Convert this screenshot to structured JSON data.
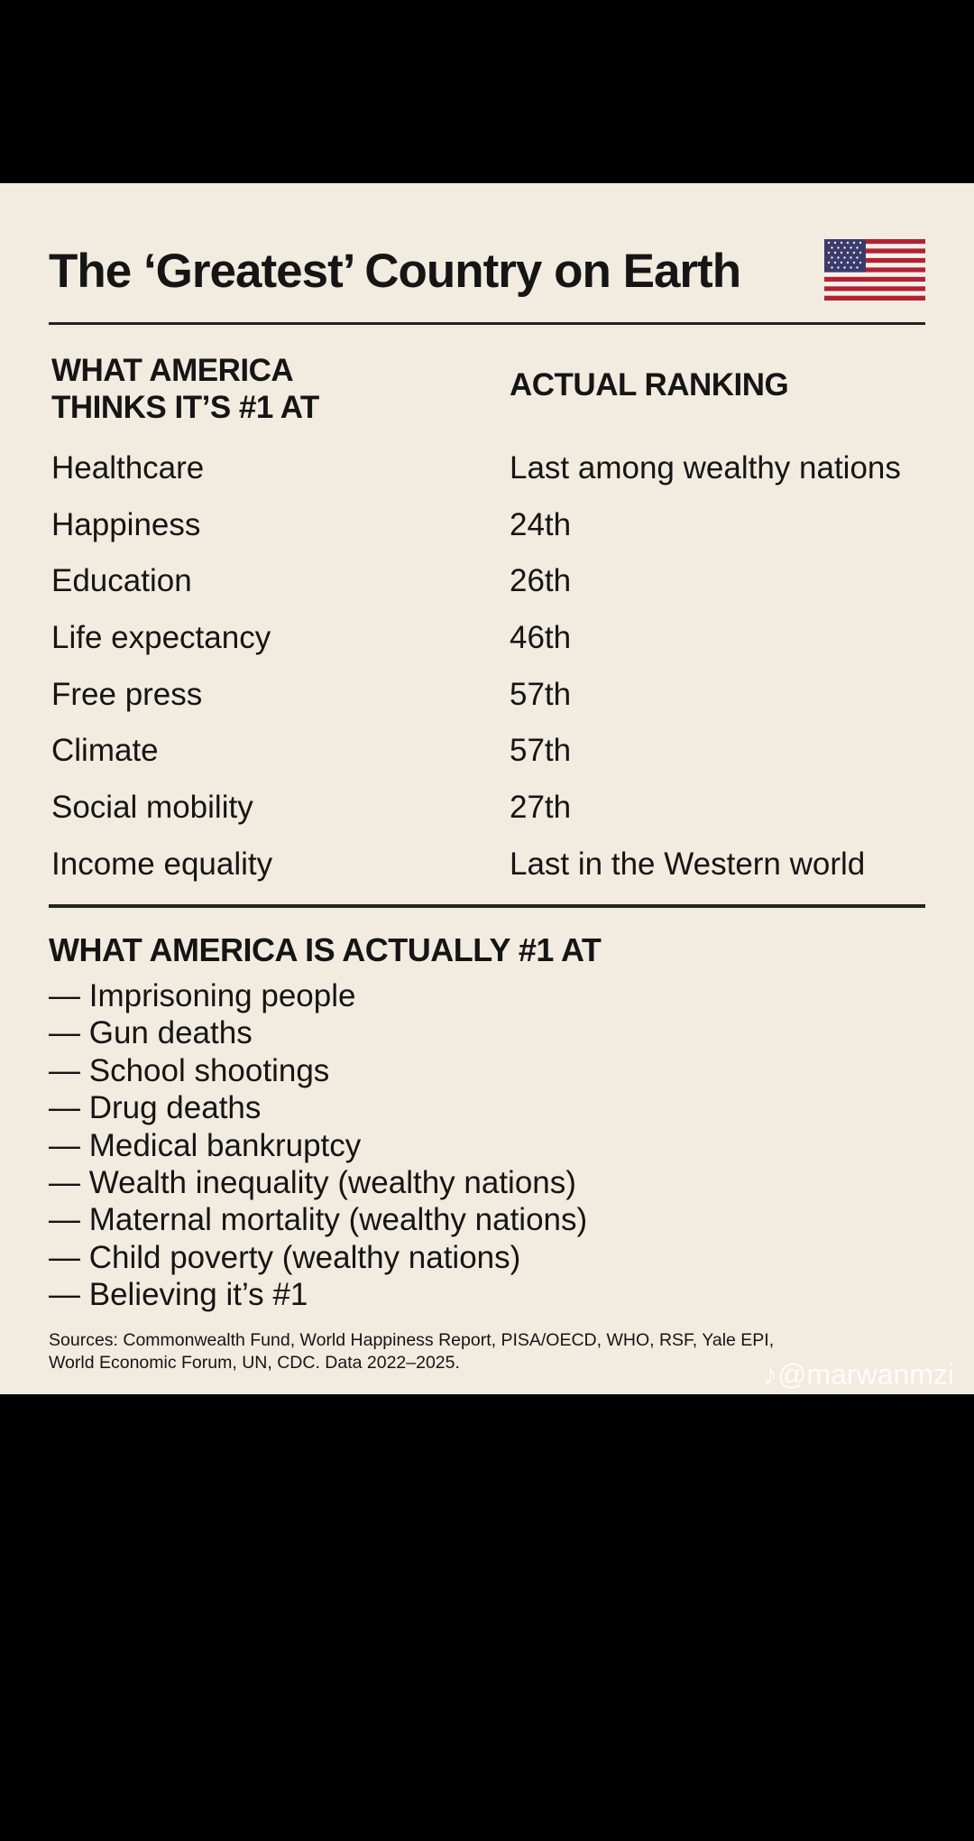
{
  "title": "The ‘Greatest’ Country on Earth",
  "flag_icon": "us-flag-icon",
  "colors": {
    "background": "#f1ebe0",
    "text": "#151515",
    "flag_red": "#b22234",
    "flag_blue": "#3c3b6e"
  },
  "table": {
    "header_left_line1": "WHAT AMERICA",
    "header_left_line2": "THINKS IT’S #1 AT",
    "header_right": "ACTUAL RANKING",
    "rows": [
      {
        "category": "Healthcare",
        "ranking": "Last among wealthy nations"
      },
      {
        "category": "Happiness",
        "ranking": "24th"
      },
      {
        "category": "Education",
        "ranking": "26th"
      },
      {
        "category": "Life expectancy",
        "ranking": "46th"
      },
      {
        "category": "Free press",
        "ranking": "57th"
      },
      {
        "category": "Climate",
        "ranking": "57th"
      },
      {
        "category": "Social mobility",
        "ranking": "27th"
      },
      {
        "category": "Income equality",
        "ranking": "Last in the Western world"
      }
    ]
  },
  "actual_section": {
    "heading": "WHAT AMERICA IS ACTUALLY #1 AT",
    "items": [
      "— Imprisoning people",
      "— Gun deaths",
      "— School shootings",
      "— Drug deaths",
      "— Medical bankruptcy",
      "— Wealth inequality (wealthy nations)",
      "— Maternal mortality (wealthy nations)",
      "— Child poverty (wealthy nations)",
      "— Believing it’s #1"
    ]
  },
  "sources_line1": "Sources: Commonwealth Fund, World Happiness Report, PISA/OECD, WHO, RSF, Yale EPI,",
  "sources_line2": "World Economic Forum, UN, CDC. Data 2022–2025.",
  "watermark_text": "@marwanmzi",
  "watermark_icon": "tiktok-icon"
}
